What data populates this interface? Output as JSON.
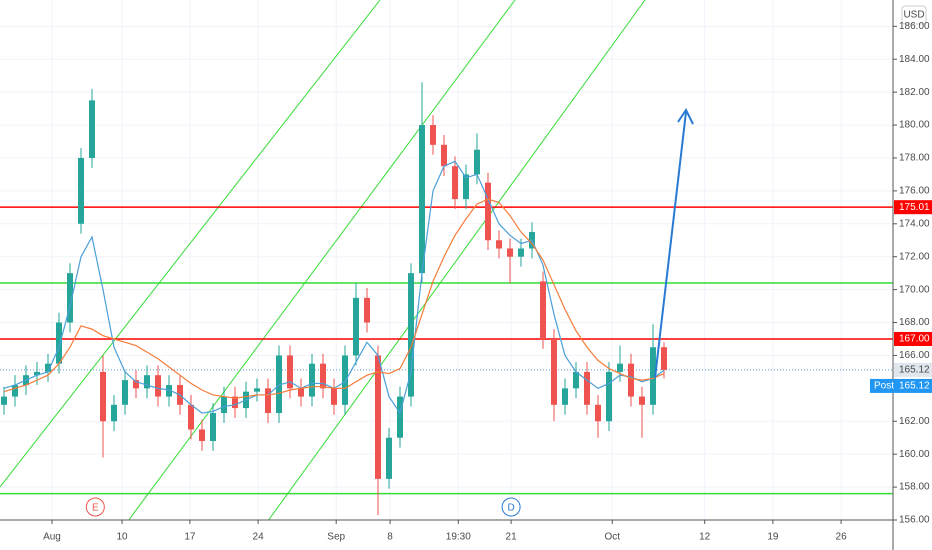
{
  "chart_data": {
    "type": "candlestick",
    "currency": "USD",
    "x": [
      0,
      1,
      2,
      3,
      4,
      5,
      6,
      7,
      8,
      9,
      10,
      11,
      12,
      13,
      14,
      15,
      16,
      17,
      18,
      19,
      20,
      21,
      22,
      23,
      24,
      25,
      26,
      27,
      28,
      29,
      30,
      31,
      32,
      33,
      34,
      35,
      36,
      37,
      38,
      39,
      40,
      41,
      42,
      43,
      44,
      45,
      46,
      47,
      48,
      49,
      50,
      51,
      52,
      53,
      54,
      55,
      56,
      57,
      58,
      59,
      60
    ],
    "open": [
      163.0,
      163.5,
      164.2,
      164.8,
      165.0,
      165.5,
      168.0,
      174.0,
      178.0,
      165.0,
      162.0,
      163.0,
      164.5,
      164.0,
      164.8,
      163.5,
      164.2,
      163.0,
      161.5,
      160.8,
      162.5,
      163.5,
      162.8,
      163.8,
      164.0,
      162.5,
      166.0,
      164.0,
      163.5,
      165.5,
      164.0,
      163.0,
      166.0,
      169.5,
      166.0,
      158.5,
      161.0,
      163.5,
      171.0,
      180.0,
      178.8,
      177.5,
      175.5,
      177.0,
      176.5,
      173.0,
      172.5,
      172.0,
      172.5,
      170.5,
      167.0,
      163.0,
      164.0,
      165.0,
      163.0,
      162.0,
      165.0,
      165.5,
      163.5,
      163.0,
      166.5
    ],
    "high": [
      164.1,
      164.8,
      165.4,
      165.6,
      166.1,
      168.6,
      171.6,
      178.6,
      182.2,
      166.0,
      163.6,
      165.1,
      165.1,
      165.4,
      165.4,
      164.8,
      164.8,
      163.6,
      162.1,
      163.1,
      164.1,
      164.1,
      164.4,
      164.6,
      164.6,
      166.6,
      166.6,
      164.6,
      166.1,
      166.1,
      164.6,
      166.6,
      170.4,
      170.1,
      166.6,
      161.6,
      164.1,
      171.6,
      182.6,
      180.6,
      179.4,
      178.1,
      177.6,
      179.5,
      177.1,
      173.6,
      173.1,
      173.1,
      174.1,
      171.1,
      167.6,
      164.6,
      165.6,
      165.6,
      163.6,
      165.6,
      166.6,
      166.1,
      164.1,
      167.9,
      166.8
    ],
    "low": [
      162.4,
      162.9,
      163.6,
      164.2,
      164.4,
      164.9,
      167.4,
      173.4,
      177.4,
      159.8,
      161.4,
      162.4,
      163.4,
      163.4,
      162.9,
      162.9,
      162.4,
      160.9,
      160.2,
      160.2,
      161.9,
      162.2,
      162.2,
      163.2,
      161.9,
      161.9,
      163.4,
      162.9,
      162.9,
      163.4,
      162.4,
      162.4,
      165.4,
      167.4,
      156.3,
      157.9,
      160.4,
      162.9,
      170.4,
      178.2,
      176.9,
      174.9,
      174.9,
      176.4,
      172.4,
      171.9,
      170.4,
      171.4,
      171.9,
      166.4,
      162.0,
      162.4,
      163.4,
      162.4,
      161.0,
      161.4,
      164.4,
      162.9,
      161.0,
      162.4,
      164.6
    ],
    "close": [
      163.5,
      164.2,
      164.8,
      165.0,
      165.5,
      168.0,
      171.0,
      178.0,
      181.5,
      162.0,
      163.0,
      164.5,
      164.0,
      164.8,
      163.5,
      164.2,
      163.0,
      161.5,
      160.8,
      162.5,
      163.5,
      162.8,
      163.8,
      164.0,
      162.5,
      166.0,
      164.0,
      163.5,
      165.5,
      164.0,
      163.0,
      166.0,
      169.5,
      168.0,
      158.5,
      161.0,
      163.5,
      171.0,
      180.0,
      178.8,
      177.5,
      175.5,
      177.0,
      178.5,
      173.0,
      172.5,
      172.0,
      172.5,
      173.5,
      167.0,
      163.0,
      164.0,
      165.0,
      163.0,
      162.0,
      165.0,
      165.5,
      163.5,
      163.0,
      166.5,
      165.12
    ],
    "up_color": "#26a69a",
    "down_color": "#ef5350",
    "lines": [
      {
        "color": "#4a9fd8",
        "values": [
          164.0,
          164.2,
          164.5,
          164.8,
          165.0,
          166.5,
          169.0,
          172.0,
          173.2,
          170.0,
          166.5,
          165.0,
          164.4,
          164.2,
          164.0,
          163.9,
          163.6,
          163.0,
          162.5,
          162.6,
          162.9,
          163.0,
          163.3,
          163.6,
          163.6,
          164.2,
          164.4,
          164.0,
          164.3,
          164.3,
          164.0,
          164.4,
          165.6,
          166.8,
          166.0,
          163.5,
          162.5,
          165.0,
          171.0,
          176.0,
          177.5,
          177.8,
          176.8,
          177.0,
          175.5,
          174.0,
          173.3,
          172.8,
          173.0,
          171.5,
          168.5,
          166.0,
          165.0,
          164.5,
          164.0,
          164.3,
          164.8,
          164.7,
          164.4,
          164.6,
          165.1
        ]
      },
      {
        "color": "#f57c3a",
        "values": [
          163.8,
          164.0,
          164.2,
          164.5,
          164.8,
          165.5,
          166.5,
          167.8,
          167.6,
          167.2,
          167.0,
          166.8,
          166.6,
          166.2,
          165.8,
          165.3,
          164.8,
          164.3,
          163.9,
          163.6,
          163.5,
          163.4,
          163.5,
          163.6,
          163.6,
          163.7,
          163.9,
          164.0,
          164.1,
          164.1,
          164.0,
          164.0,
          164.4,
          164.8,
          165.0,
          164.9,
          165.2,
          166.5,
          168.5,
          170.5,
          172.0,
          173.3,
          174.3,
          175.2,
          175.5,
          175.3,
          174.5,
          173.5,
          172.8,
          171.8,
          170.3,
          168.8,
          167.5,
          166.5,
          165.7,
          165.2,
          164.9,
          164.6,
          164.5,
          164.6,
          164.9
        ]
      }
    ],
    "levels": [
      {
        "value": 175.01,
        "color": "#ff0000"
      },
      {
        "value": 167,
        "label": "167.00",
        "color": "#ff0000"
      },
      {
        "value": 170.4,
        "color": "#33dd33"
      },
      {
        "value": 157.6,
        "color": "#33dd33"
      }
    ],
    "last_price": {
      "value": 165.12,
      "session": "Post"
    },
    "events": [
      {
        "x": 8.3,
        "text": "E",
        "color": "#ef5350"
      },
      {
        "x": 46.1,
        "text": "D",
        "color": "#2a7ad4"
      }
    ],
    "xlim": [
      -0.364,
      80.82
    ],
    "ylim": [
      156,
      187.6
    ],
    "xticks": [
      {
        "value": 4.36,
        "label": "Aug"
      },
      {
        "value": 10.73,
        "label": "10"
      },
      {
        "value": 16.9,
        "label": "17"
      },
      {
        "value": 23.1,
        "label": "24"
      },
      {
        "value": 30.2,
        "label": "Sep"
      },
      {
        "value": 35.1,
        "label": "8"
      },
      {
        "value": 41.3,
        "label": "19:30"
      },
      {
        "value": 46.1,
        "label": "21"
      },
      {
        "value": 55.3,
        "label": "Oct"
      },
      {
        "value": 63.7,
        "label": "12"
      },
      {
        "value": 69.9,
        "label": "19"
      },
      {
        "value": 76.1,
        "label": "26"
      }
    ],
    "yticks": [
      {
        "value": 156,
        "label": "156.00"
      },
      {
        "value": 158,
        "label": "158.00"
      },
      {
        "value": 160,
        "label": "160.00"
      },
      {
        "value": 162,
        "label": "162.00"
      },
      {
        "value": 166,
        "label": "166.00"
      },
      {
        "value": 168,
        "label": "168.00"
      },
      {
        "value": 170,
        "label": "170.00"
      },
      {
        "value": 172,
        "label": "172.00"
      },
      {
        "value": 174,
        "label": "174.00"
      },
      {
        "value": 176,
        "label": "176.00"
      },
      {
        "value": 178,
        "label": "178.00"
      },
      {
        "value": 180,
        "label": "180.00"
      },
      {
        "value": 182,
        "label": "182.00"
      },
      {
        "value": 184,
        "label": "184.00"
      },
      {
        "value": 186,
        "label": "186.00"
      }
    ],
    "grid": true
  }
}
